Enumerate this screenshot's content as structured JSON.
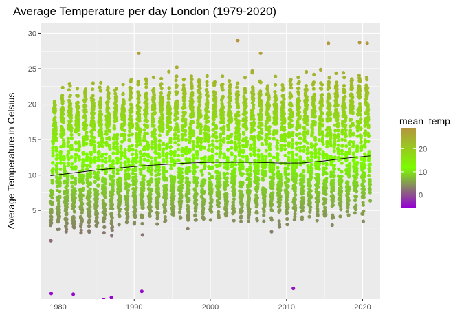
{
  "chart_data": {
    "type": "scatter",
    "title": "Average Temperature per day London (1979-2020)",
    "xlabel": "",
    "ylabel": "Average Temperature in Celsius",
    "xlim": [
      1977.7,
      2022.3
    ],
    "ylim": [
      -7.5,
      31.5
    ],
    "x_ticks": [
      1980,
      1990,
      2000,
      2010,
      2020
    ],
    "y_ticks": [
      5,
      10,
      15,
      20,
      25,
      30
    ],
    "grid": true,
    "point_color_scale": {
      "variable": "mean_temp",
      "low_value": -7.6,
      "mid_value": 12,
      "high_value": 29,
      "low_color": "#9400d3",
      "mid_color": "#7cfc00",
      "high_color": "#b5953f"
    },
    "legend": {
      "title": "mean_temp",
      "ticks": [
        20,
        10,
        0
      ],
      "placement": "right"
    },
    "trend": {
      "x": [
        1979,
        1982,
        1985,
        1988,
        1991,
        1994,
        1997,
        2000,
        2003,
        2006,
        2009,
        2012,
        2015,
        2018,
        2021
      ],
      "y": [
        9.9,
        10.3,
        10.7,
        11.0,
        11.3,
        11.5,
        11.7,
        11.8,
        11.8,
        11.8,
        11.7,
        11.7,
        12.0,
        12.4,
        12.7
      ]
    },
    "series": [
      {
        "x_range": [
          1979,
          2021
        ],
        "typical_range_celsius": [
          -2,
          23
        ],
        "notable_points": [
          {
            "x": 2003.6,
            "y": 29.0
          },
          {
            "x": 2019.6,
            "y": 28.7
          },
          {
            "x": 2020.6,
            "y": 28.6
          },
          {
            "x": 2015.5,
            "y": 28.6
          },
          {
            "x": 1990.6,
            "y": 27.2
          },
          {
            "x": 1995.6,
            "y": 25.2
          },
          {
            "x": 2006.6,
            "y": 27.2
          },
          {
            "x": 1986.0,
            "y": -7.6
          },
          {
            "x": 1987.0,
            "y": -7.3
          },
          {
            "x": 1979.1,
            "y": -6.7
          },
          {
            "x": 1982.0,
            "y": -6.8
          },
          {
            "x": 1991.0,
            "y": -6.4
          },
          {
            "x": 2010.9,
            "y": -6.0
          }
        ]
      }
    ]
  }
}
